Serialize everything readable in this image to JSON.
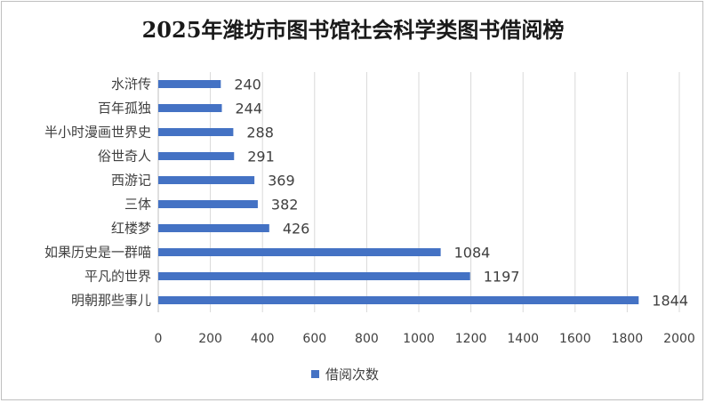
{
  "chart_data": {
    "type": "bar",
    "orientation": "horizontal",
    "title": "2025年潍坊市图书馆社会科学类图书借阅榜",
    "categories": [
      "水浒传",
      "百年孤独",
      "半小时漫画世界史",
      "俗世奇人",
      "西游记",
      "三体",
      "红楼梦",
      "如果历史是一群喵",
      "平凡的世界",
      "明朝那些事儿"
    ],
    "series": [
      {
        "name": "借阅次数",
        "values": [
          240,
          244,
          288,
          291,
          369,
          382,
          426,
          1084,
          1197,
          1844
        ]
      }
    ],
    "xlim": [
      0,
      2000
    ],
    "xticks": [
      "0",
      "200",
      "400",
      "600",
      "800",
      "1000",
      "1200",
      "1400",
      "1600",
      "1800",
      "2000"
    ],
    "grid": true,
    "legend_position": "bottom",
    "data_labels": true,
    "colors": {
      "bar": "#4472c4",
      "grid": "#d9d9d9",
      "axis": "#bfbfbf",
      "text": "#404040"
    }
  }
}
